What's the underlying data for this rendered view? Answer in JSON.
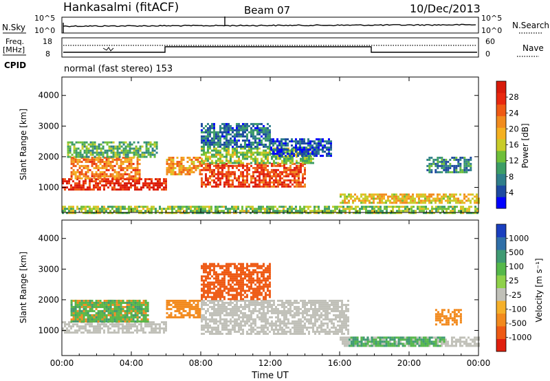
{
  "header": {
    "station": "Hankasalmi (fitACF)",
    "beam": "Beam 07",
    "date": "10/Dec/2013"
  },
  "strips": {
    "nsky_label": "N.Sky",
    "nsky_ticks": [
      "10^5",
      "10^0"
    ],
    "nsearch_label": "N.Search",
    "nsearch_ticks": [
      "10^5",
      "10^0"
    ],
    "freq_label": "Freq.",
    "freq_unit": "[MHz]",
    "freq_ticks": [
      "18",
      "8"
    ],
    "nave_label": "Nave",
    "nave_ticks": [
      "60",
      "0"
    ],
    "cpid_label": "CPID",
    "cpid_value": "normal (fast stereo) 153"
  },
  "chart_data": [
    {
      "type": "heatmap",
      "name": "power",
      "ylabel": "Slant Range [km]",
      "xlabel": "",
      "x_ticks": [
        "00:00",
        "04:00",
        "08:00",
        "12:00",
        "16:00",
        "20:00",
        "00:00"
      ],
      "y_ticks": [
        "1000",
        "2000",
        "3000",
        "4000"
      ],
      "ylim": [
        180,
        4600
      ],
      "xlim_hours": [
        0,
        24
      ],
      "colorbar": {
        "label": "Power [dB]",
        "ticks": [
          "4",
          "8",
          "12",
          "16",
          "20",
          "24",
          "28"
        ],
        "colors": [
          "#0000ff",
          "#1d4aa0",
          "#2f7e8a",
          "#3c9d66",
          "#6fbf3a",
          "#c8cc2a",
          "#f4b021",
          "#f18b1e",
          "#ef5a14",
          "#e8280f",
          "#d81b0b"
        ]
      },
      "regions": [
        {
          "t0": 0.0,
          "t1": 6.0,
          "r0": 900,
          "r1": 1300,
          "v": 27
        },
        {
          "t0": 0.5,
          "t1": 4.5,
          "r0": 1300,
          "r1": 2000,
          "v": 22
        },
        {
          "t0": 0.3,
          "t1": 5.5,
          "r0": 2000,
          "r1": 2500,
          "v": 12
        },
        {
          "t0": 6.0,
          "t1": 8.0,
          "r0": 1400,
          "r1": 2000,
          "v": 20
        },
        {
          "t0": 8.0,
          "t1": 14.0,
          "r0": 1000,
          "r1": 1800,
          "v": 25
        },
        {
          "t0": 8.0,
          "t1": 14.5,
          "r0": 1800,
          "r1": 2300,
          "v": 14
        },
        {
          "t0": 8.0,
          "t1": 12.0,
          "r0": 2300,
          "r1": 3100,
          "v": 8
        },
        {
          "t0": 12.0,
          "t1": 15.5,
          "r0": 2000,
          "r1": 2600,
          "v": 6
        },
        {
          "t0": 16.0,
          "t1": 24.0,
          "r0": 500,
          "r1": 800,
          "v": 18
        },
        {
          "t0": 21.0,
          "t1": 23.5,
          "r0": 1500,
          "r1": 2000,
          "v": 9
        },
        {
          "t0": 0.0,
          "t1": 24.0,
          "r0": 180,
          "r1": 400,
          "v": 14
        }
      ]
    },
    {
      "type": "heatmap",
      "name": "velocity",
      "ylabel": "Slant Range [km]",
      "xlabel": "Time UT",
      "x_ticks": [
        "00:00",
        "04:00",
        "08:00",
        "12:00",
        "16:00",
        "20:00",
        "00:00"
      ],
      "y_ticks": [
        "1000",
        "2000",
        "3000",
        "4000"
      ],
      "ylim": [
        180,
        4600
      ],
      "xlim_hours": [
        0,
        24
      ],
      "colorbar": {
        "label": "Velocity [m s⁻¹]",
        "ticks": [
          "1000",
          "500",
          "100",
          "25",
          "-25",
          "-100",
          "-500",
          "-1000"
        ],
        "colors": [
          "#1a3fbf",
          "#2f6fa8",
          "#3f9a73",
          "#55b84a",
          "#8fd14a",
          "#c0c0b8",
          "#f5b02a",
          "#f28a1e",
          "#ee5a14",
          "#e0200e"
        ]
      },
      "regions": [
        {
          "t0": 0.0,
          "t1": 6.0,
          "r0": 900,
          "r1": 1300,
          "v": 0
        },
        {
          "t0": 0.5,
          "t1": 5.0,
          "r0": 1300,
          "r1": 2000,
          "v": -150
        },
        {
          "t0": 0.5,
          "t1": 5.0,
          "r0": 1300,
          "r1": 2000,
          "v": 80
        },
        {
          "t0": 6.0,
          "t1": 8.0,
          "r0": 1400,
          "r1": 2000,
          "v": -200
        },
        {
          "t0": 8.0,
          "t1": 16.5,
          "r0": 900,
          "r1": 2000,
          "v": 0
        },
        {
          "t0": 8.0,
          "t1": 12.0,
          "r0": 2000,
          "r1": 3200,
          "v": -400
        },
        {
          "t0": 16.0,
          "t1": 24.0,
          "r0": 500,
          "r1": 800,
          "v": 0
        },
        {
          "t0": 16.5,
          "t1": 22.0,
          "r0": 500,
          "r1": 800,
          "v": 90
        },
        {
          "t0": 21.5,
          "t1": 23.0,
          "r0": 1200,
          "r1": 1700,
          "v": -200
        }
      ]
    }
  ]
}
